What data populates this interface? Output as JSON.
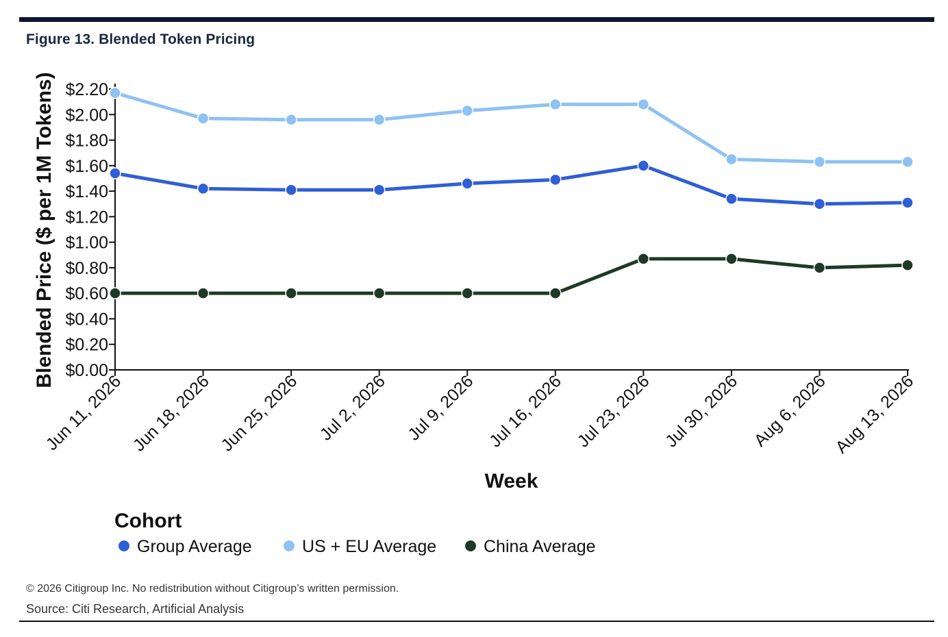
{
  "figure_title": "Figure 13. Blended Token Pricing",
  "footer": {
    "copyright": "© 2026 Citigroup Inc. No redistribution without Citigroup’s written permission.",
    "source": "Source: Citi Research, Artificial Analysis"
  },
  "chart_data": {
    "type": "line",
    "xlabel": "Week",
    "ylabel": "Blended Price ($ per 1M Tokens)",
    "x": [
      "Jun 11, 2026",
      "Jun 18, 2026",
      "Jun 25, 2026",
      "Jul 2, 2026",
      "Jul 9, 2026",
      "Jul 16, 2026",
      "Jul 23, 2026",
      "Jul 30, 2026",
      "Aug 6, 2026",
      "Aug 13, 2026"
    ],
    "ylim": [
      0,
      2.2
    ],
    "yticks": [
      0,
      0.2,
      0.4,
      0.6,
      0.8,
      1.0,
      1.2,
      1.4,
      1.6,
      1.8,
      2.0,
      2.2
    ],
    "ytick_labels": [
      "$0.00",
      "$0.20",
      "$0.40",
      "$0.60",
      "$0.80",
      "$1.00",
      "$1.20",
      "$1.40",
      "$1.60",
      "$1.80",
      "$2.00",
      "$2.20"
    ],
    "grid": false,
    "legend": {
      "title": "Cohort",
      "position": "bottom-left"
    },
    "series": [
      {
        "name": "Group Average",
        "color": "#2f5ed6",
        "values": [
          1.54,
          1.42,
          1.41,
          1.41,
          1.46,
          1.49,
          1.6,
          1.34,
          1.3,
          1.31
        ]
      },
      {
        "name": "US + EU Average",
        "color": "#8ec2f2",
        "values": [
          2.17,
          1.97,
          1.96,
          1.96,
          2.03,
          2.08,
          2.08,
          1.65,
          1.63,
          1.63
        ]
      },
      {
        "name": "China Average",
        "color": "#1e3a26",
        "values": [
          0.6,
          0.6,
          0.6,
          0.6,
          0.6,
          0.6,
          0.87,
          0.87,
          0.8,
          0.82
        ]
      }
    ]
  }
}
